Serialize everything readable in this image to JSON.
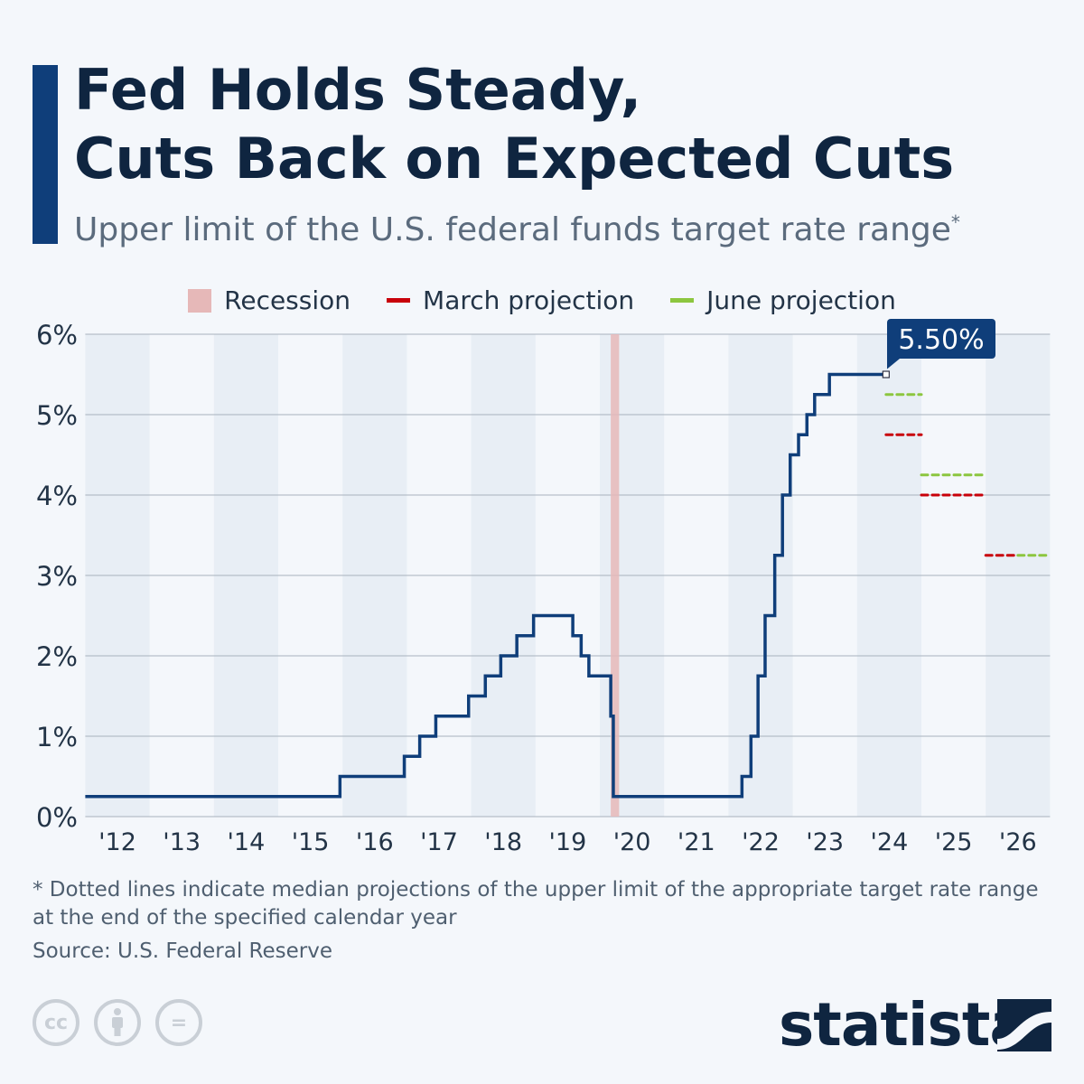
{
  "title_line1": "Fed Holds Steady,",
  "title_line2": "Cuts Back on Expected Cuts",
  "subtitle": "Upper limit of the U.S. federal funds target rate range",
  "subtitle_mark": "*",
  "legend": {
    "recession": "Recession",
    "march": "March projection",
    "june": "June projection"
  },
  "colors": {
    "line": "#0f3e7a",
    "recession": "#e6b8b8",
    "march": "#c8000a",
    "june": "#8cc63f",
    "band": "#e8eef5"
  },
  "chart_data": {
    "type": "line",
    "step": true,
    "ylim": [
      0,
      6
    ],
    "xlim": [
      2012,
      2027
    ],
    "yticks": [
      0,
      1,
      2,
      3,
      4,
      5,
      6
    ],
    "ytick_labels": [
      "0%",
      "1%",
      "2%",
      "3%",
      "4%",
      "5%",
      "6%"
    ],
    "xtick_labels": [
      "'12",
      "'13",
      "'14",
      "'15",
      "'16",
      "'17",
      "'18",
      "'19",
      "'20",
      "'21",
      "'22",
      "'23",
      "'24",
      "'25",
      "'26"
    ],
    "grid": true,
    "legend_position": "top",
    "series": [
      {
        "x": [
          2012,
          2015.96,
          2016.96,
          2017.2,
          2017.45,
          2017.96,
          2018.22,
          2018.46,
          2018.71,
          2018.97,
          2019.58,
          2019.71,
          2019.83,
          2020.17,
          2020.21,
          2022.21,
          2022.35,
          2022.46,
          2022.57,
          2022.72,
          2022.84,
          2022.96,
          2023.09,
          2023.22,
          2023.34,
          2023.57,
          2024.45
        ],
        "y": [
          0.25,
          0.5,
          0.75,
          1.0,
          1.25,
          1.5,
          1.75,
          2.0,
          2.25,
          2.5,
          2.25,
          2.0,
          1.75,
          1.25,
          0.25,
          0.5,
          1.0,
          1.75,
          2.5,
          3.25,
          4.0,
          4.5,
          4.75,
          5.0,
          5.25,
          5.5,
          5.5
        ]
      }
    ],
    "recession": [
      2020.17,
      2020.3
    ],
    "projections": {
      "March projection": [
        {
          "year": 2024,
          "value": 4.75
        },
        {
          "year": 2025,
          "value": 4.0
        },
        {
          "year": 2026,
          "value": 3.25
        }
      ],
      "June projection": [
        {
          "year": 2024,
          "value": 5.25
        },
        {
          "year": 2025,
          "value": 4.25
        },
        {
          "year": 2026,
          "value": 3.25
        }
      ]
    },
    "annotation": "5.50%"
  },
  "footnote": "* Dotted lines indicate median projections of the upper limit of the appropriate target rate range at the end of the specified calendar year",
  "source": "Source: U.S. Federal Reserve",
  "brand": "statista",
  "license_icons": [
    "cc-icon",
    "attribution-icon",
    "no-derivatives-icon"
  ]
}
